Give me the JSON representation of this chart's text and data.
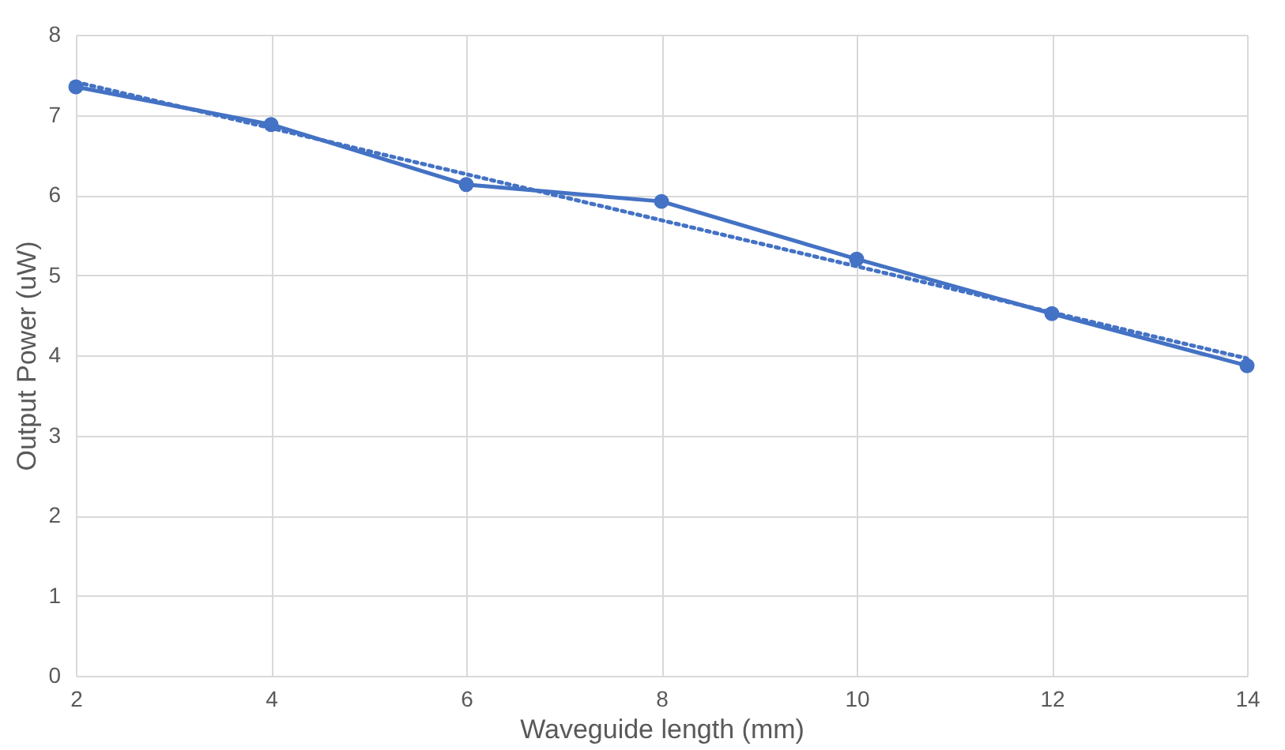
{
  "chart_data": {
    "type": "line",
    "xlabel": "Waveguide length (mm)",
    "ylabel": "Output Power (uW)",
    "x": [
      2,
      4,
      6,
      8,
      10,
      12,
      14
    ],
    "series": [
      {
        "color": "#4472c4",
        "values": [
          7.35,
          6.88,
          6.13,
          5.92,
          5.2,
          4.52,
          3.87
        ],
        "marker": "circle",
        "line_style": "solid"
      },
      {
        "color": "#4472c4",
        "type": "line",
        "x": [
          2,
          14
        ],
        "values": [
          7.41,
          3.96
        ],
        "marker": "none",
        "line_style": "dotted"
      }
    ],
    "xlim": [
      2,
      14
    ],
    "xticks": [
      2,
      4,
      6,
      8,
      10,
      12,
      14
    ],
    "ylim": [
      0,
      8
    ],
    "yticks": [
      0,
      1,
      2,
      3,
      4,
      5,
      6,
      7,
      8
    ],
    "grid": true
  }
}
